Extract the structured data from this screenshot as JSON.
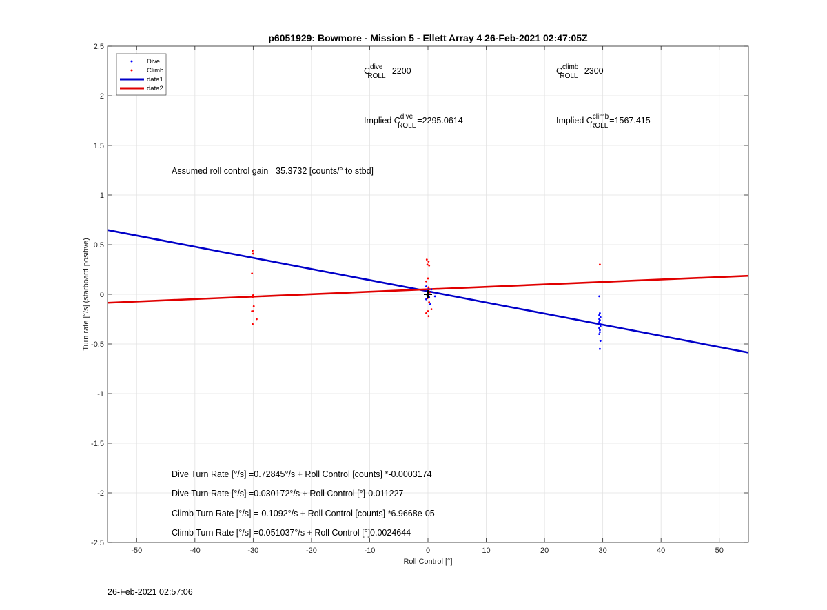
{
  "chart_data": {
    "type": "scatter",
    "title": "p6051929: Bowmore - Mission 5 - Ellett Array 4 26-Feb-2021 02:47:05Z",
    "xlabel": "Roll Control [°]",
    "ylabel": "Turn rate [°/s] (starboard positive)",
    "xlim": [
      -55,
      55
    ],
    "ylim": [
      -2.5,
      2.5
    ],
    "xticks": [
      -50,
      -40,
      -30,
      -20,
      -10,
      0,
      10,
      20,
      30,
      40,
      50
    ],
    "yticks": [
      -2.5,
      -2,
      -1.5,
      -1,
      -0.5,
      0,
      0.5,
      1,
      1.5,
      2,
      2.5
    ],
    "grid": true,
    "legend_position": "top-left",
    "colors": {
      "dive": "#0000ff",
      "climb": "#ff0000",
      "dive_fit": "#0000c8",
      "climb_fit": "#e00000"
    },
    "series": [
      {
        "name": "Dive",
        "kind": "points",
        "x": [
          29.4,
          29.5,
          29.4,
          29.6,
          29.5,
          29.4,
          29.5,
          29.6,
          29.4,
          29.5,
          29.5,
          29.4,
          29.6,
          29.5,
          29.4,
          -0.3,
          0.1,
          -0.2,
          0.3,
          0.0,
          -0.1,
          0.2,
          -0.3,
          1.2,
          0.4,
          0.6
        ],
        "y": [
          -0.02,
          -0.19,
          -0.21,
          -0.23,
          -0.26,
          -0.28,
          -0.3,
          -0.32,
          -0.34,
          -0.36,
          -0.38,
          -0.4,
          -0.47,
          -0.55,
          -0.25,
          0.08,
          0.06,
          0.04,
          0.02,
          0.0,
          -0.01,
          -0.03,
          -0.05,
          -0.02,
          -0.1,
          0.05
        ]
      },
      {
        "name": "Climb",
        "kind": "points",
        "x": [
          -30.1,
          -30.0,
          -30.2,
          -30.0,
          -30.1,
          -29.9,
          -30.0,
          -30.2,
          -30.1,
          -29.4,
          -0.2,
          0.1,
          -0.1,
          0.2,
          0.0,
          -0.3,
          0.1,
          -0.2,
          0.0,
          0.3,
          -0.1,
          0.2,
          0.6,
          0.0,
          -0.3,
          0.1,
          29.5
        ],
        "y": [
          0.44,
          0.41,
          0.21,
          -0.01,
          -0.03,
          -0.12,
          -0.17,
          -0.17,
          -0.3,
          -0.25,
          0.35,
          0.33,
          0.3,
          0.29,
          0.16,
          0.13,
          0.07,
          0.05,
          0.03,
          0.02,
          -0.04,
          -0.08,
          -0.15,
          -0.17,
          -0.19,
          -0.22,
          0.3
        ]
      },
      {
        "name": "data1",
        "kind": "line",
        "x": [
          -55,
          55
        ],
        "y": [
          0.648,
          -0.587
        ]
      },
      {
        "name": "data2",
        "kind": "line",
        "x": [
          -55,
          55
        ],
        "y": [
          -0.085,
          0.186
        ]
      }
    ],
    "marker": {
      "x": 0,
      "y": 0
    },
    "annotations": {
      "c_dive_prefix": "C",
      "c_dive_sup": "dive",
      "c_dive_sub": "ROLL",
      "c_dive_value": "=2200",
      "c_climb_prefix": "C",
      "c_climb_sup": "climb",
      "c_climb_sub": "ROLL",
      "c_climb_value": "=2300",
      "implied_dive_prefix": "Implied C",
      "implied_dive_sup": "dive",
      "implied_dive_sub": "ROLL",
      "implied_dive_value": "=2295.0614",
      "implied_climb_prefix": "Implied C",
      "implied_climb_sup": "climb",
      "implied_climb_sub": "ROLL",
      "implied_climb_value": "=1567.415",
      "gain": "Assumed roll control gain =35.3732 [counts/° to stbd]",
      "eq1": "Dive Turn Rate [°/s] =0.72845°/s + Roll Control [counts] *-0.0003174",
      "eq2": "Dive Turn Rate [°/s] =0.030172°/s + Roll Control [°]-0.011227",
      "eq3": "Climb Turn Rate [°/s] =-0.1092°/s + Roll Control [counts] *6.9668e-05",
      "eq4": "Climb Turn Rate [°/s] =0.051037°/s + Roll Control [°]0.0024644"
    }
  },
  "footer": {
    "timestamp": "26-Feb-2021 02:57:06"
  }
}
